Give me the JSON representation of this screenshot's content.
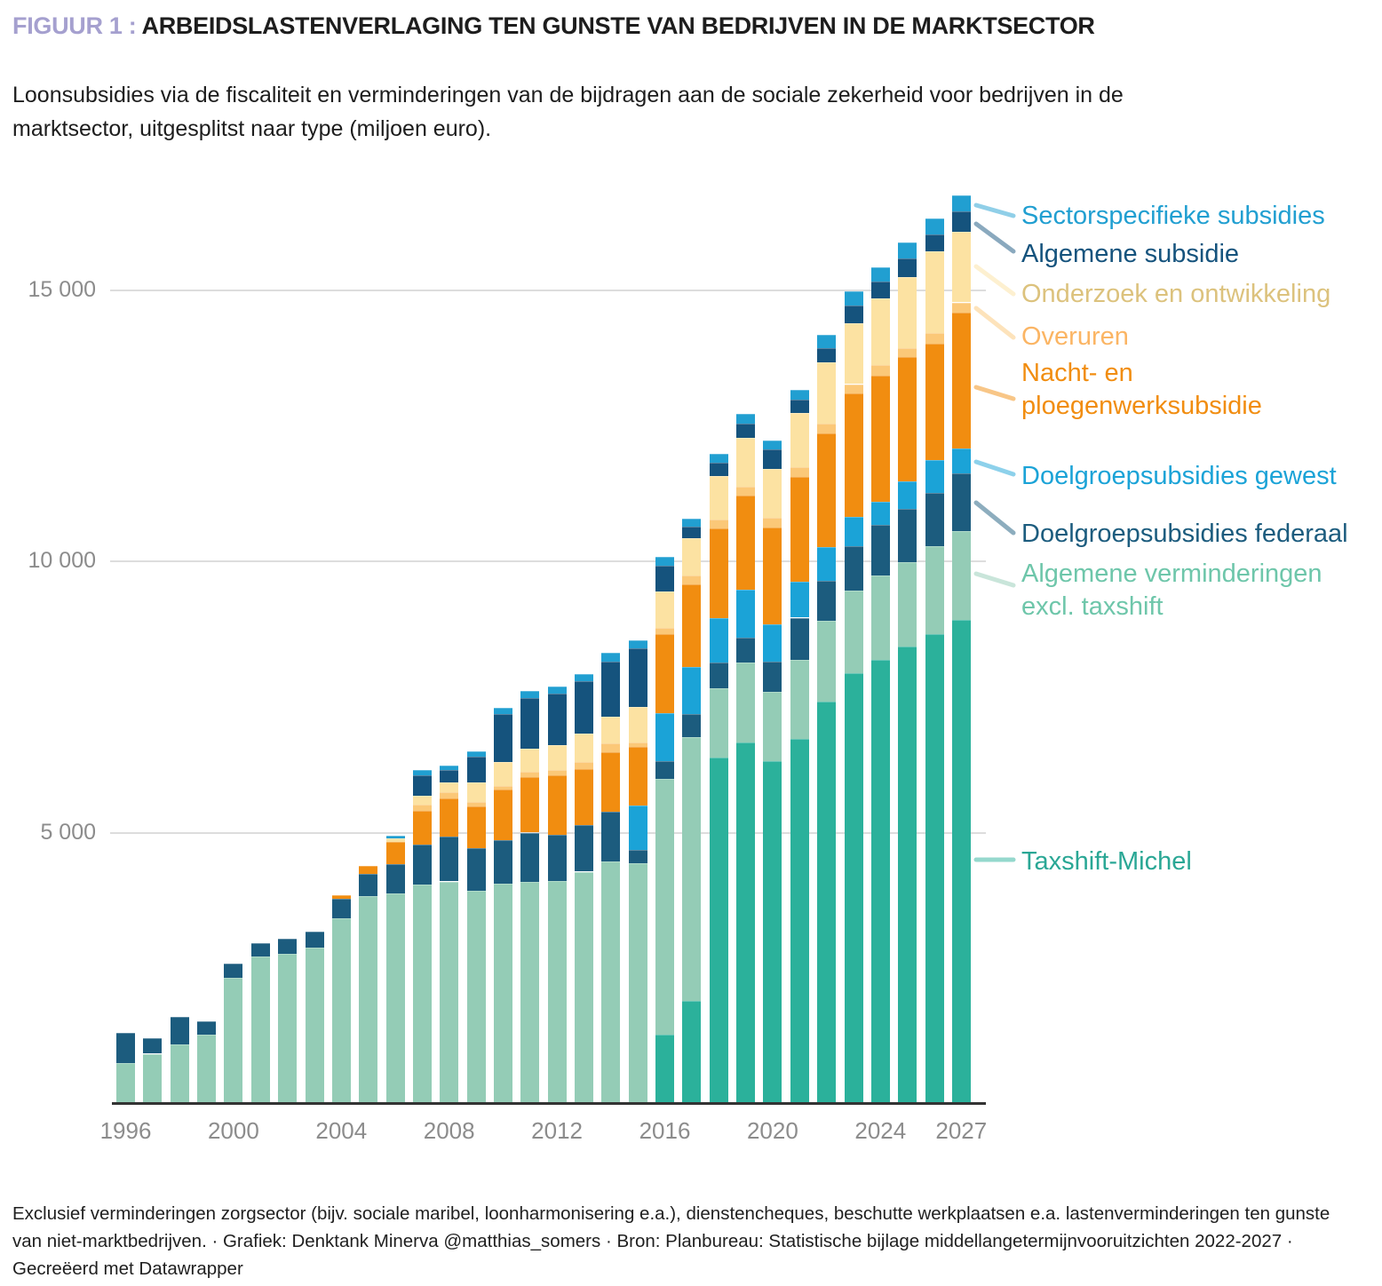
{
  "header": {
    "title_prefix": "FIGUUR 1 :",
    "title": "ARBEIDSLASTENVERLAGING TEN GUNSTE VAN BEDRIJVEN IN DE MARKTSECTOR",
    "subtitle": "Loonsubsidies via de fiscaliteit en verminderingen van de bijdragen aan de sociale zekerheid voor bedrijven in de\nmarktsector, uitgesplitst naar type (miljoen euro)."
  },
  "chart_data": {
    "type": "bar",
    "stacked": true,
    "title": "Arbeidslastenverlaging ten gunste van bedrijven in de marktsector",
    "unit": "miljoen euro",
    "ylim": [
      0,
      17000
    ],
    "grid": "horizontal",
    "legend_position": "right",
    "categories": [
      1996,
      1997,
      1998,
      1999,
      2000,
      2001,
      2002,
      2003,
      2004,
      2005,
      2006,
      2007,
      2008,
      2009,
      2010,
      2011,
      2012,
      2013,
      2014,
      2015,
      2016,
      2017,
      2018,
      2019,
      2020,
      2021,
      2022,
      2023,
      2024,
      2025,
      2026,
      2027
    ],
    "x_tick_labels": [
      "1996",
      "2000",
      "2004",
      "2008",
      "2012",
      "2016",
      "2020",
      "2024",
      "2027"
    ],
    "y_ticks": [
      {
        "value": 5000,
        "label": "5 000"
      },
      {
        "value": 10000,
        "label": "10 000"
      },
      {
        "value": 15000,
        "label": "15 000"
      }
    ],
    "series": [
      {
        "key": "taxshift",
        "name": "Taxshift-Michel",
        "color": "#2bb19b",
        "values": [
          0,
          0,
          0,
          0,
          0,
          0,
          0,
          0,
          0,
          0,
          0,
          0,
          0,
          0,
          0,
          0,
          0,
          0,
          0,
          0,
          1275,
          1900,
          6380,
          6660,
          6325,
          6725,
          7415,
          7935,
          8180,
          8425,
          8655,
          8915
        ]
      },
      {
        "key": "verm",
        "name": "Algemene verminderingen excl. taxshift",
        "color": "#94ccb6",
        "values": [
          760,
          925,
          1095,
          1275,
          2330,
          2720,
          2770,
          2885,
          3415,
          3825,
          3885,
          4045,
          4100,
          3935,
          4060,
          4095,
          4105,
          4280,
          4470,
          4440,
          4720,
          4855,
          1280,
          1475,
          1265,
          1455,
          1490,
          1525,
          1555,
          1555,
          1625,
          1635
        ]
      },
      {
        "key": "federaal",
        "name": "Doelgroepsubsidies federaal",
        "color": "#1c5c7e",
        "values": [
          545,
          280,
          505,
          250,
          260,
          245,
          270,
          290,
          370,
          415,
          540,
          735,
          820,
          780,
          800,
          905,
          855,
          855,
          915,
          235,
          330,
          435,
          475,
          455,
          560,
          780,
          730,
          820,
          940,
          980,
          980,
          1065
        ]
      },
      {
        "key": "gewest",
        "name": "Doelgroepsubsidies gewest",
        "color": "#1ba3d7",
        "values": [
          0,
          0,
          0,
          0,
          0,
          0,
          0,
          0,
          0,
          0,
          0,
          0,
          0,
          0,
          0,
          0,
          0,
          0,
          0,
          820,
          870,
          870,
          820,
          890,
          685,
          670,
          630,
          535,
          425,
          515,
          600,
          465
        ]
      },
      {
        "key": "nacht",
        "name": "Nacht- en ploegenwerksubsidie",
        "color": "#f18d10",
        "values": [
          0,
          0,
          0,
          0,
          0,
          0,
          0,
          0,
          55,
          145,
          400,
          625,
          710,
          770,
          930,
          1020,
          1095,
          1035,
          1105,
          1085,
          1465,
          1510,
          1655,
          1730,
          1790,
          1920,
          2085,
          2275,
          2320,
          2290,
          2155,
          2500
        ]
      },
      {
        "key": "overuren",
        "name": "Overuren",
        "color": "#fbc878",
        "values": [
          0,
          0,
          0,
          0,
          0,
          0,
          0,
          0,
          0,
          0,
          0,
          110,
          115,
          80,
          70,
          95,
          100,
          130,
          155,
          80,
          110,
          165,
          165,
          165,
          175,
          180,
          190,
          175,
          190,
          165,
          190,
          190
        ]
      },
      {
        "key": "oo",
        "name": "Onderzoek en ontwikkeling",
        "color": "#fce2a2",
        "values": [
          0,
          0,
          0,
          0,
          0,
          0,
          0,
          0,
          0,
          0,
          65,
          170,
          175,
          355,
          435,
          425,
          450,
          525,
          495,
          655,
          675,
          695,
          800,
          900,
          900,
          1010,
          1120,
          1120,
          1230,
          1310,
          1500,
          1295
        ]
      },
      {
        "key": "algsub",
        "name": "Algemene subsidie",
        "color": "#15537d",
        "values": [
          0,
          0,
          0,
          0,
          0,
          0,
          0,
          0,
          0,
          0,
          0,
          365,
          230,
          480,
          885,
          940,
          955,
          970,
          1010,
          1080,
          470,
          215,
          245,
          260,
          355,
          235,
          270,
          325,
          310,
          340,
          325,
          385
        ]
      },
      {
        "key": "sector",
        "name": "Sectorspecifieke subsidies",
        "color": "#219fd1",
        "values": [
          0,
          0,
          0,
          0,
          0,
          0,
          0,
          0,
          0,
          0,
          60,
          110,
          90,
          105,
          120,
          135,
          135,
          120,
          165,
          150,
          160,
          140,
          165,
          185,
          175,
          190,
          240,
          270,
          275,
          290,
          285,
          300
        ]
      }
    ]
  },
  "legend": [
    {
      "key": "sector",
      "label": "Sectorspecifieke subsidies",
      "color": "#219fd1"
    },
    {
      "key": "algsub",
      "label": "Algemene subsidie",
      "color": "#15537d"
    },
    {
      "key": "oo",
      "label": "Onderzoek en ontwikkeling",
      "color": "#dcc27d"
    },
    {
      "key": "overuren",
      "label": "Overuren",
      "color": "#fbb564"
    },
    {
      "key": "nacht",
      "label": "Nacht- en\nploegenwerksubsidie",
      "color": "#f18d10"
    },
    {
      "key": "gewest",
      "label": "Doelgroepsubsidies gewest",
      "color": "#1ba3d7"
    },
    {
      "key": "federaal",
      "label": "Doelgroepsubsidies federaal",
      "color": "#1c5c7e"
    },
    {
      "key": "verm",
      "label": "Algemene verminderingen\nexcl. taxshift",
      "color": "#6ec6aa"
    },
    {
      "key": "taxshift",
      "label": "Taxshift-Michel",
      "color": "#2aa795"
    }
  ],
  "footer": {
    "notes": "Exclusief verminderingen zorgsector (bijv. sociale maribel, loonharmonisering e.a.), dienstencheques, beschutte werkplaatsen e.a. lastenverminderingen ten gunste\nvan niet-marktbedrijven. · Grafiek: Denktank Minerva @matthias_somers · Bron: Planbureau: Statistische bijlage middellangetermijnvooruitzichten 2022-2027 ·\nGecreëerd met Datawrapper"
  }
}
